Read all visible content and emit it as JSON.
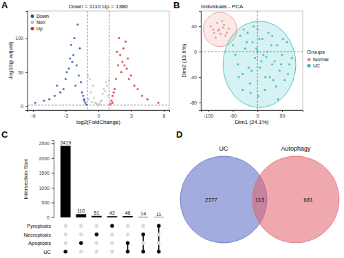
{
  "chart_data": [
    {
      "panel": "A",
      "type": "scatter",
      "title": "Down = 1110 Up = 1380",
      "x_label": "log2(FoldChange)",
      "y_label": "-log10(p.adjust)",
      "xlim": [
        -6.5,
        6.5
      ],
      "xticks": [
        -6,
        -3,
        0,
        3,
        6
      ],
      "ylim": [
        -6,
        140
      ],
      "yticks": [
        0,
        50,
        100
      ],
      "x_lines": [
        -1,
        1
      ],
      "y_lines": [
        1.3
      ],
      "legend": "top-left",
      "series": [
        {
          "name": "Down",
          "color": "#1f4e9e",
          "x": [
            -1.1,
            -1.2,
            -1.3,
            -1.5,
            -1.6,
            -1.8,
            -2.0,
            -2.1,
            -2.3,
            -2.5,
            -2.7,
            -3.0,
            -3.2,
            -1.4,
            -1.9,
            -2.2,
            -2.6,
            -3.5,
            -4.0,
            -4.5,
            -5.0,
            -5.8,
            -1.7,
            -2.4,
            -2.9,
            -1.3,
            -3.8
          ],
          "values": [
            2,
            5,
            10,
            20,
            35,
            45,
            60,
            30,
            75,
            90,
            55,
            40,
            25,
            15,
            120,
            100,
            70,
            20,
            15,
            10,
            8,
            5,
            85,
            65,
            50,
            8,
            30
          ]
        },
        {
          "name": "Non",
          "color": "#bdbdbd",
          "x": [
            -0.9,
            -0.7,
            -0.5,
            -0.3,
            -0.1,
            0.1,
            0.3,
            0.5,
            0.7,
            0.9,
            -0.8,
            -0.4,
            0,
            0.4,
            0.8,
            -0.6,
            -0.2,
            0.2,
            0.6,
            -0.95,
            0.95
          ],
          "values": [
            10,
            20,
            30,
            5,
            2,
            3,
            8,
            25,
            35,
            15,
            40,
            12,
            1,
            18,
            30,
            6,
            4,
            7,
            22,
            45,
            38
          ]
        },
        {
          "name": "Up",
          "color": "#d62020",
          "x": [
            1.1,
            1.2,
            1.3,
            1.5,
            1.6,
            1.8,
            2.0,
            2.1,
            2.3,
            2.5,
            2.7,
            3.0,
            3.3,
            1.4,
            1.9,
            2.2,
            2.6,
            3.6,
            4.0,
            4.5,
            5.5,
            1.7,
            2.4,
            2.8,
            1.3
          ],
          "values": [
            3,
            8,
            15,
            25,
            40,
            60,
            75,
            50,
            85,
            95,
            70,
            45,
            30,
            20,
            100,
            65,
            55,
            25,
            15,
            10,
            5,
            80,
            60,
            40,
            5
          ]
        }
      ]
    },
    {
      "panel": "B",
      "type": "scatter",
      "title": "Individuals - PCA",
      "x_label": "Dim1 (24.1%)",
      "y_label": "Dim2 (13.6%)",
      "xlim": [
        -115,
        92
      ],
      "xticks": [
        -100,
        -50,
        0,
        50
      ],
      "ylim": [
        -92,
        64
      ],
      "yticks": [
        -80,
        -40,
        0,
        40
      ],
      "x_lines": [
        0
      ],
      "y_lines": [
        0
      ],
      "legend_title": "Groups",
      "series": [
        {
          "name": "Normal",
          "color": "#e8867d",
          "ellipse": {
            "cx": -76,
            "cy": 35,
            "rx": 34,
            "ry": 27
          },
          "x": [
            -95,
            -88,
            -82,
            -78,
            -75,
            -70,
            -68,
            -62,
            -85,
            -72,
            -80,
            -65,
            -90,
            -58
          ],
          "values": [
            40,
            30,
            45,
            35,
            28,
            38,
            42,
            30,
            22,
            48,
            33,
            25,
            35,
            36
          ]
        },
        {
          "name": "UC",
          "color": "#1fb5b5",
          "ellipse": {
            "cx": 4,
            "cy": -20,
            "rx": 74,
            "ry": 68
          },
          "x": [
            -50,
            -40,
            -35,
            -30,
            -25,
            -20,
            -15,
            -10,
            -5,
            0,
            5,
            10,
            15,
            20,
            25,
            30,
            35,
            40,
            45,
            50,
            55,
            60,
            65,
            70,
            -45,
            -30,
            -18,
            -8,
            2,
            12,
            22,
            32,
            42,
            52,
            62,
            -38,
            -22,
            -12,
            0,
            8,
            18,
            28,
            38,
            48,
            -28,
            -14,
            4,
            16,
            30,
            -2
          ],
          "values": [
            10,
            -20,
            25,
            -35,
            5,
            30,
            -50,
            15,
            -10,
            35,
            -25,
            20,
            -60,
            0,
            -40,
            25,
            -15,
            10,
            -30,
            -5,
            -45,
            15,
            -20,
            -10,
            -5,
            -60,
            -25,
            40,
            -70,
            -5,
            30,
            -45,
            -75,
            20,
            -35,
            -40,
            15,
            -30,
            0,
            -15,
            -8,
            10,
            -55,
            -20,
            35,
            -65,
            20,
            -40,
            -20,
            5
          ]
        }
      ]
    },
    {
      "panel": "C",
      "type": "upset",
      "y_label": "Intersection Size",
      "values": [
        2419,
        110,
        51,
        42,
        46,
        14,
        11
      ],
      "color": "#000000",
      "data_labels": true,
      "tick_labels": "y",
      "ylim": [
        0,
        2600
      ],
      "yticks": [
        0,
        500,
        1000,
        1500,
        2000,
        2500
      ],
      "sets": [
        "Pyroptosis",
        "Necroptosis",
        "Apoptosis",
        "UC"
      ],
      "memberships": [
        [
          "UC"
        ],
        [
          "Apoptosis"
        ],
        [
          "Necroptosis"
        ],
        [
          "Pyroptosis"
        ],
        [
          "Apoptosis",
          "UC"
        ],
        [
          "Necroptosis",
          "UC"
        ],
        [
          "Pyroptosis",
          "UC"
        ]
      ]
    },
    {
      "panel": "D",
      "type": "venn",
      "series": [
        {
          "name": "UC",
          "color": "#5a67c4"
        },
        {
          "name": "Autophagy",
          "color": "#e2626b"
        }
      ],
      "values": [
        2377,
        113,
        681
      ]
    }
  ]
}
